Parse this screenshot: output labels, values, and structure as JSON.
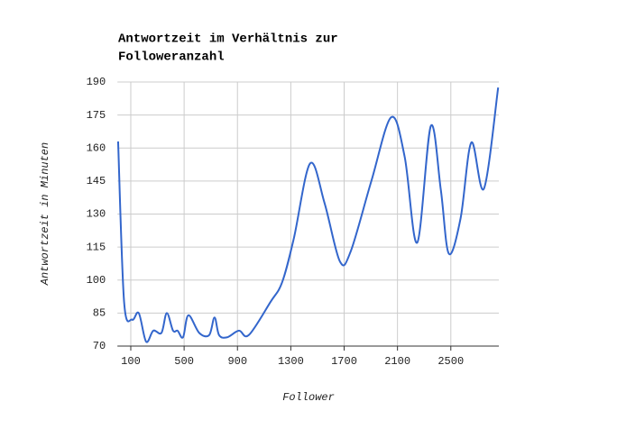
{
  "chart_data": {
    "type": "line",
    "title": [
      "Antwortzeit im Verhältnis zur",
      "Followeranzahl"
    ],
    "x_label": "Follower",
    "y_label": "Antwortzeit in Minuten",
    "xlim": [
      0,
      2860
    ],
    "xticks": [
      100,
      500,
      900,
      1300,
      1700,
      2100,
      2500
    ],
    "ylim": [
      70,
      190
    ],
    "yticks": [
      70,
      85,
      100,
      115,
      130,
      145,
      160,
      175,
      190
    ],
    "grid": true,
    "series": [
      {
        "name": "Antwortzeit",
        "color": "#3366cc",
        "x": [
          5,
          50,
          110,
          160,
          215,
          269,
          330,
          370,
          417,
          451,
          492,
          532,
          613,
          688,
          728,
          762,
          823,
          911,
          985,
          1147,
          1235,
          1323,
          1445,
          1553,
          1668,
          1749,
          1904,
          2053,
          2154,
          2248,
          2350,
          2425,
          2485,
          2573,
          2654,
          2748,
          2855
        ],
        "values": [
          163,
          90,
          82,
          85,
          72,
          77,
          76,
          85,
          77,
          77,
          74,
          84,
          76,
          75,
          83,
          75,
          74,
          77,
          75,
          90,
          99,
          119,
          153,
          135,
          108.5,
          113,
          145,
          174,
          156,
          117,
          170,
          141,
          112,
          128,
          162.5,
          141.5,
          187.5
        ]
      }
    ]
  }
}
